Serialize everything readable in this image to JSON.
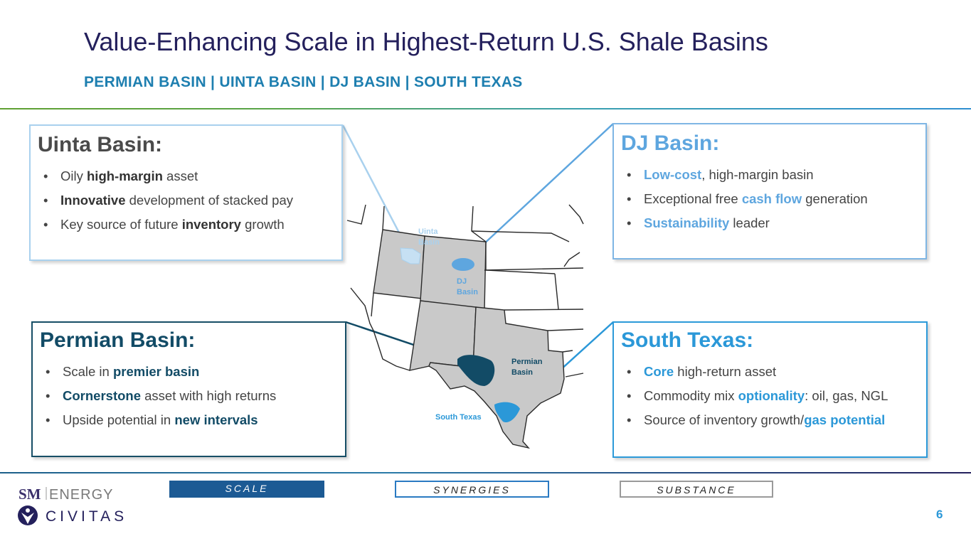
{
  "header": {
    "title": "Value-Enhancing Scale in Highest-Return U.S. Shale Basins",
    "subtitle": "PERMIAN BASIN | UINTA BASIN | DJ BASIN | SOUTH TEXAS"
  },
  "boxes": {
    "uinta": {
      "title": "Uinta Basin:",
      "bullets": [
        {
          "pre": "Oily ",
          "bold": "high-margin",
          "post": " asset"
        },
        {
          "pre": "",
          "bold": "Innovative",
          "post": " development of stacked pay"
        },
        {
          "pre": "Key source of future ",
          "bold": "inventory",
          "post": " growth"
        }
      ]
    },
    "dj": {
      "title": "DJ Basin:",
      "bullets": [
        {
          "pre": "",
          "bold": "Low-cost",
          "post": ", high-margin basin"
        },
        {
          "pre": "Exceptional free ",
          "bold": "cash flow",
          "post": " generation"
        },
        {
          "pre": "",
          "bold": "Sustainability",
          "post": " leader"
        }
      ]
    },
    "permian": {
      "title": "Permian Basin:",
      "bullets": [
        {
          "pre": "Scale in ",
          "bold": "premier basin",
          "post": ""
        },
        {
          "pre": "",
          "bold": "Cornerstone",
          "post": " asset with high returns"
        },
        {
          "pre": "Upside potential in ",
          "bold": "new intervals",
          "post": ""
        }
      ]
    },
    "south_texas": {
      "title": "South Texas:",
      "bullets": [
        {
          "pre": "",
          "bold": "Core",
          "post": " high-return asset"
        },
        {
          "pre": "Commodity mix ",
          "bold": "optionality",
          "post": ": oil, gas, NGL"
        },
        {
          "pre": "Source of inventory growth/",
          "bold": "gas potential",
          "post": ""
        }
      ]
    }
  },
  "map_labels": {
    "uinta_1": "Uinta",
    "uinta_2": "Basin",
    "dj_1": "DJ",
    "dj_2": "Basin",
    "permian_1": "Permian",
    "permian_2": "Basin",
    "south_texas": "South Texas"
  },
  "footer": {
    "pills": [
      "SCALE",
      "SYNERGIES",
      "SUBSTANCE"
    ],
    "page_number": "6",
    "logo_sm": "SM",
    "logo_energy": "ENERGY",
    "logo_civitas": "CIVITAS"
  },
  "colors": {
    "title": "#24205c",
    "subtitle": "#1e7fb0",
    "uinta": "#a9d1ee",
    "dj": "#5ea6df",
    "permian": "#124b66",
    "south_texas": "#2b98d8"
  }
}
